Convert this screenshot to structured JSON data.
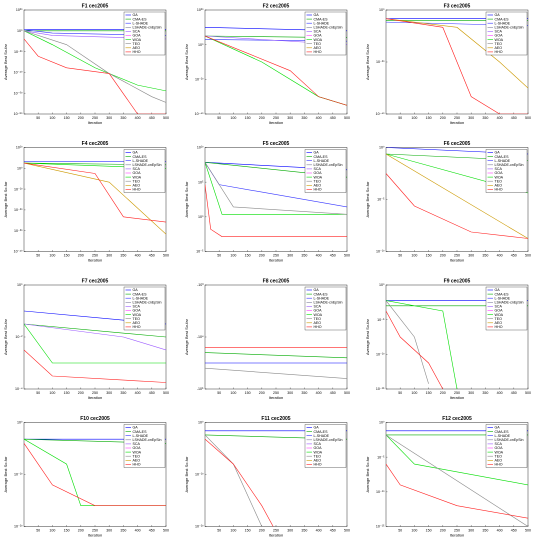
{
  "figure": {
    "xlabel": "Iteration",
    "ylabel": "Average Best So-far",
    "x_ticks": [
      50,
      100,
      150,
      200,
      250,
      300,
      350,
      400,
      450,
      500
    ],
    "legend_entries": [
      "GA",
      "CMA-ES",
      "L-SHADE",
      "LSHADE-cnEpSin",
      "SCA",
      "GOA",
      "WOA",
      "TEO",
      "AEO",
      "HHO"
    ],
    "series_colors": [
      "#0000ff",
      "#00aa00",
      "#3333ff",
      "#8080a0",
      "#9b59ff",
      "#ff40ff",
      "#00dd00",
      "#8a8a8a",
      "#cc9900",
      "#ff2020"
    ]
  },
  "chart_data": [
    {
      "type": "line",
      "title": "F1 cec2005",
      "xlim": [
        0,
        500
      ],
      "ylim_exp": [
        -70,
        20
      ],
      "log_y": true,
      "yticks": [
        "10²⁰",
        "10⁰",
        "10⁻²⁰",
        "10⁻⁴⁰",
        "10⁻⁶⁰",
        "10⁻⁸⁰"
      ],
      "series": [
        {
          "name": "GA",
          "x": [
            0,
            500
          ],
          "y": [
            3,
            3
          ]
        },
        {
          "name": "CMA-ES",
          "x": [
            0,
            500
          ],
          "y": [
            2,
            2
          ]
        },
        {
          "name": "L-SHADE",
          "x": [
            0,
            100,
            500
          ],
          "y": [
            3,
            0,
            -2
          ]
        },
        {
          "name": "SCA",
          "x": [
            0,
            100,
            500
          ],
          "y": [
            2,
            -2,
            -5
          ]
        },
        {
          "name": "WOA",
          "x": [
            0,
            100,
            250,
            400,
            500
          ],
          "y": [
            2,
            -10,
            -30,
            -45,
            -50
          ]
        },
        {
          "name": "TEO",
          "x": [
            0,
            150,
            300,
            450,
            500
          ],
          "y": [
            2,
            -10,
            -35,
            -55,
            -60
          ]
        },
        {
          "name": "HHO",
          "x": [
            0,
            50,
            150,
            300,
            400,
            500
          ],
          "y": [
            -5,
            -20,
            -30,
            -35,
            -70,
            -70
          ]
        }
      ]
    },
    {
      "type": "line",
      "title": "F2 cec2005",
      "xlim": [
        0,
        500
      ],
      "ylim_exp": [
        -40,
        20
      ],
      "log_y": true,
      "yticks": [
        "10²⁰",
        "10⁰",
        "10⁻²⁰",
        "10⁻⁴⁰"
      ],
      "series": [
        {
          "name": "GA",
          "x": [
            0,
            500
          ],
          "y": [
            10,
            8
          ]
        },
        {
          "name": "CMA-ES",
          "x": [
            0,
            500
          ],
          "y": [
            5,
            4
          ]
        },
        {
          "name": "L-SHADE",
          "x": [
            0,
            500
          ],
          "y": [
            3,
            2
          ]
        },
        {
          "name": "SCA",
          "x": [
            0,
            500
          ],
          "y": [
            5,
            0
          ]
        },
        {
          "name": "WOA",
          "x": [
            0,
            200,
            400,
            500
          ],
          "y": [
            5,
            -10,
            -30,
            -35
          ]
        },
        {
          "name": "HHO",
          "x": [
            0,
            150,
            300,
            400,
            500
          ],
          "y": [
            5,
            -5,
            -15,
            -30,
            -35
          ]
        }
      ]
    },
    {
      "type": "line",
      "title": "F3 cec2005",
      "xlim": [
        0,
        500
      ],
      "ylim_exp": [
        -50,
        10
      ],
      "log_y": true,
      "yticks": [
        "10⁰",
        "10⁻²⁰",
        "10⁻⁴⁰"
      ],
      "series": [
        {
          "name": "GA",
          "x": [
            0,
            500
          ],
          "y": [
            5,
            5
          ]
        },
        {
          "name": "CMA-ES",
          "x": [
            0,
            500
          ],
          "y": [
            4,
            4
          ]
        },
        {
          "name": "L-SHADE",
          "x": [
            0,
            500
          ],
          "y": [
            3,
            1
          ]
        },
        {
          "name": "AEO",
          "x": [
            0,
            250,
            400,
            500
          ],
          "y": [
            5,
            0,
            -20,
            -35
          ]
        },
        {
          "name": "HHO",
          "x": [
            0,
            200,
            300,
            400,
            500
          ],
          "y": [
            5,
            0,
            -40,
            -50,
            -50
          ]
        }
      ]
    },
    {
      "type": "line",
      "title": "F4 cec2005",
      "xlim": [
        0,
        500
      ],
      "ylim_exp": [
        -50,
        10
      ],
      "log_y": true,
      "yticks": [
        "10¹⁰",
        "10⁰",
        "10⁻¹⁰",
        "10⁻²⁰",
        "10⁻³⁰",
        "10⁻⁴⁰"
      ],
      "series": [
        {
          "name": "GA",
          "x": [
            0,
            500
          ],
          "y": [
            2,
            2
          ]
        },
        {
          "name": "CMA-ES",
          "x": [
            0,
            500
          ],
          "y": [
            1,
            0
          ]
        },
        {
          "name": "WOA",
          "x": [
            0,
            500
          ],
          "y": [
            1,
            -2
          ]
        },
        {
          "name": "AEO",
          "x": [
            0,
            300,
            500
          ],
          "y": [
            1,
            -10,
            -40
          ]
        },
        {
          "name": "HHO",
          "x": [
            0,
            250,
            350,
            500
          ],
          "y": [
            1,
            -5,
            -30,
            -33
          ]
        }
      ]
    },
    {
      "type": "line",
      "title": "F5 cec2005",
      "xlim": [
        0,
        500
      ],
      "ylim_exp": [
        -4,
        10
      ],
      "log_y": true,
      "yticks": [
        "10¹⁰",
        "10⁵",
        "10⁰",
        "10⁻⁵"
      ],
      "series": [
        {
          "name": "GA",
          "x": [
            0,
            500
          ],
          "y": [
            8,
            7
          ]
        },
        {
          "name": "CMA-ES",
          "x": [
            0,
            500
          ],
          "y": [
            8,
            6
          ]
        },
        {
          "name": "L-SHADE",
          "x": [
            0,
            50,
            500
          ],
          "y": [
            8,
            5,
            2
          ]
        },
        {
          "name": "WOA",
          "x": [
            0,
            60,
            500
          ],
          "y": [
            8,
            1,
            1
          ]
        },
        {
          "name": "TEO",
          "x": [
            0,
            100,
            500
          ],
          "y": [
            8,
            2,
            1
          ]
        },
        {
          "name": "HHO",
          "x": [
            0,
            20,
            60,
            500
          ],
          "y": [
            5,
            -1,
            -2,
            -2
          ]
        }
      ]
    },
    {
      "type": "line",
      "title": "F6 cec2005",
      "xlim": [
        0,
        500
      ],
      "ylim_exp": [
        -12,
        4
      ],
      "log_y": true,
      "yticks": [
        "10⁰",
        "10⁻⁵",
        "10⁻¹⁰"
      ],
      "series": [
        {
          "name": "GA",
          "x": [
            0,
            500
          ],
          "y": [
            4,
            3
          ]
        },
        {
          "name": "CMA-ES",
          "x": [
            0,
            500
          ],
          "y": [
            3,
            2
          ]
        },
        {
          "name": "WOA",
          "x": [
            0,
            500
          ],
          "y": [
            3,
            -3
          ]
        },
        {
          "name": "AEO",
          "x": [
            0,
            500
          ],
          "y": [
            3,
            -10
          ]
        },
        {
          "name": "HHO",
          "x": [
            0,
            100,
            300,
            500
          ],
          "y": [
            0,
            -5,
            -9,
            -10
          ]
        }
      ]
    },
    {
      "type": "line",
      "title": "F7 cec2005",
      "xlim": [
        0,
        500
      ],
      "ylim_exp": [
        -4,
        4
      ],
      "log_y": true,
      "yticks": [
        "10⁰",
        "10⁻²",
        "10⁻⁴"
      ],
      "series": [
        {
          "name": "GA",
          "x": [
            0,
            500
          ],
          "y": [
            2,
            1
          ]
        },
        {
          "name": "CMA-ES",
          "x": [
            0,
            500
          ],
          "y": [
            1,
            0
          ]
        },
        {
          "name": "SCA",
          "x": [
            0,
            350,
            500
          ],
          "y": [
            1,
            0,
            -1
          ]
        },
        {
          "name": "WOA",
          "x": [
            0,
            100,
            500
          ],
          "y": [
            1,
            -2,
            -2
          ]
        },
        {
          "name": "HHO",
          "x": [
            0,
            100,
            500
          ],
          "y": [
            -1,
            -3,
            -3.5
          ]
        }
      ]
    },
    {
      "type": "line",
      "title": "F8 cec2005",
      "xlim": [
        0,
        500
      ],
      "ylim_exp": [
        3,
        5
      ],
      "log_y": true,
      "yticks": [
        "-10³",
        "-10⁴",
        "-10⁵"
      ],
      "series": [
        {
          "name": "GA",
          "x": [
            0,
            500
          ],
          "y": [
            3.5,
            3.5
          ]
        },
        {
          "name": "CMA-ES",
          "x": [
            0,
            500
          ],
          "y": [
            3.7,
            3.6
          ]
        },
        {
          "name": "TEO",
          "x": [
            0,
            500
          ],
          "y": [
            3.4,
            3.2
          ]
        },
        {
          "name": "HHO",
          "x": [
            0,
            500
          ],
          "y": [
            3.8,
            3.8
          ]
        }
      ]
    },
    {
      "type": "line",
      "title": "F9 cec2005",
      "xlim": [
        0,
        500
      ],
      "ylim_exp": [
        -15,
        5
      ],
      "log_y": true,
      "yticks": [
        "10⁰",
        "10⁻⁵",
        "10⁻¹⁰",
        "10⁻¹⁵"
      ],
      "series": [
        {
          "name": "GA",
          "x": [
            0,
            500
          ],
          "y": [
            2,
            2
          ]
        },
        {
          "name": "CMA-ES",
          "x": [
            0,
            500
          ],
          "y": [
            1,
            1
          ]
        },
        {
          "name": "TEO",
          "x": [
            0,
            100,
            150
          ],
          "y": [
            2,
            -5,
            -14
          ]
        },
        {
          "name": "WOA",
          "x": [
            0,
            200,
            250
          ],
          "y": [
            2,
            0,
            -15
          ]
        },
        {
          "name": "HHO",
          "x": [
            0,
            50,
            150,
            200
          ],
          "y": [
            0,
            -5,
            -10,
            -15
          ]
        }
      ]
    },
    {
      "type": "line",
      "title": "F10 cec2005",
      "xlim": [
        0,
        500
      ],
      "ylim_exp": [
        -20,
        5
      ],
      "log_y": true,
      "yticks": [
        "10⁰",
        "10⁻¹⁰",
        "10⁻²⁰"
      ],
      "series": [
        {
          "name": "GA",
          "x": [
            0,
            500
          ],
          "y": [
            1,
            1
          ]
        },
        {
          "name": "CMA-ES",
          "x": [
            0,
            500
          ],
          "y": [
            1,
            0
          ]
        },
        {
          "name": "WOA",
          "x": [
            0,
            150,
            200,
            500
          ],
          "y": [
            1,
            -5,
            -15,
            -15
          ]
        },
        {
          "name": "HHO",
          "x": [
            0,
            100,
            250,
            500
          ],
          "y": [
            0,
            -10,
            -15,
            -15
          ]
        }
      ]
    },
    {
      "type": "line",
      "title": "F11 cec2005",
      "xlim": [
        0,
        500
      ],
      "ylim_exp": [
        -20,
        5
      ],
      "log_y": true,
      "yticks": [
        "10⁰",
        "10⁻¹⁰",
        "10⁻²⁰"
      ],
      "series": [
        {
          "name": "GA",
          "x": [
            0,
            500
          ],
          "y": [
            3,
            3
          ]
        },
        {
          "name": "CMA-ES",
          "x": [
            0,
            500
          ],
          "y": [
            2,
            1
          ]
        },
        {
          "name": "TEO",
          "x": [
            0,
            100,
            200
          ],
          "y": [
            2,
            -5,
            -20
          ]
        },
        {
          "name": "HHO",
          "x": [
            0,
            100,
            200,
            240
          ],
          "y": [
            1,
            -5,
            -15,
            -20
          ]
        }
      ]
    },
    {
      "type": "line",
      "title": "F12 cec2005",
      "xlim": [
        0,
        500
      ],
      "ylim_exp": [
        -20,
        5
      ],
      "log_y": true,
      "yticks": [
        "10⁰",
        "10⁻⁵",
        "10⁻¹⁰",
        "10⁻¹⁵"
      ],
      "series": [
        {
          "name": "GA",
          "x": [
            0,
            500
          ],
          "y": [
            3,
            3
          ]
        },
        {
          "name": "CMA-ES",
          "x": [
            0,
            500
          ],
          "y": [
            2,
            2
          ]
        },
        {
          "name": "WOA",
          "x": [
            0,
            100,
            500
          ],
          "y": [
            2,
            -5,
            -10
          ]
        },
        {
          "name": "TEO",
          "x": [
            0,
            500
          ],
          "y": [
            2,
            -20
          ]
        },
        {
          "name": "HHO",
          "x": [
            0,
            50,
            250,
            500
          ],
          "y": [
            -5,
            -10,
            -15,
            -18
          ]
        }
      ]
    }
  ]
}
